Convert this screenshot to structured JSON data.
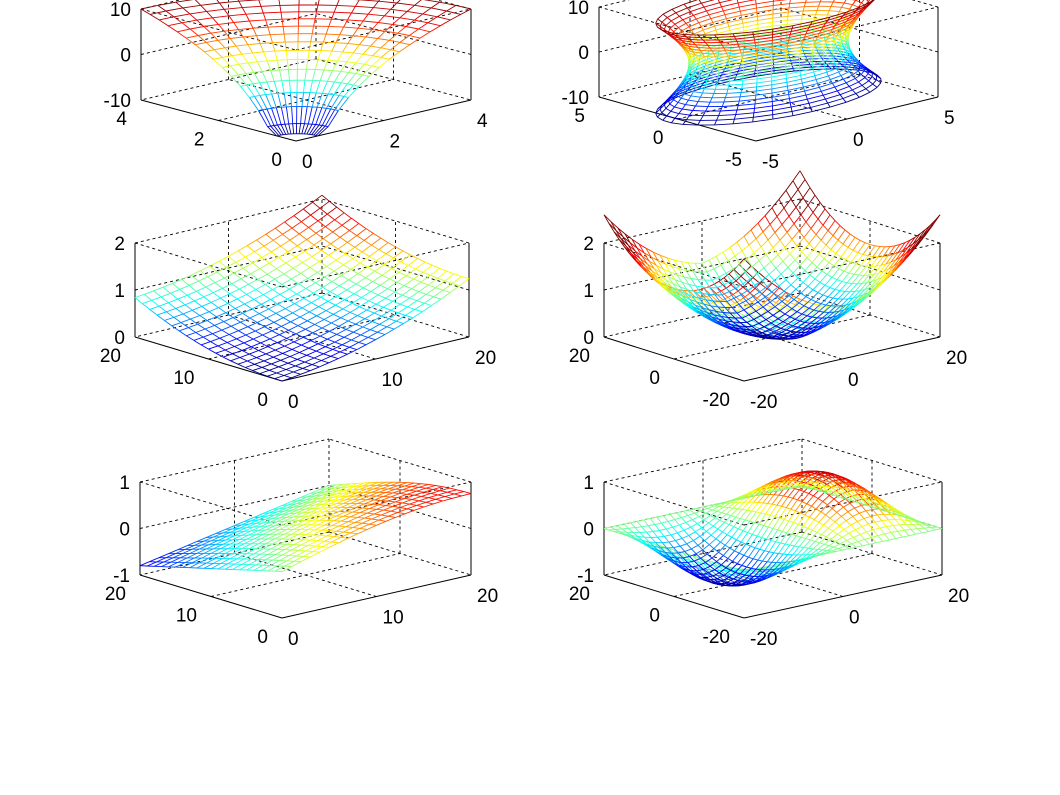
{
  "figure": {
    "layout": "3x2 subplot grid of 3D mesh surfaces",
    "colormap": "jet",
    "background": "#ffffff"
  },
  "chart_data": [
    {
      "id": "p1",
      "type": "surface",
      "style": "mesh",
      "grid": true,
      "colormap": "jet",
      "surface": "funnel",
      "xlim": [
        0,
        4
      ],
      "ylim": [
        0,
        4
      ],
      "zlim": [
        -10,
        10
      ],
      "xticks": [
        "0",
        "2",
        "4"
      ],
      "yticks": [
        "0",
        "2",
        "4"
      ],
      "zticks": [
        "-10",
        "0",
        "10"
      ]
    },
    {
      "id": "p2",
      "type": "surface",
      "style": "mesh",
      "grid": true,
      "colormap": "jet",
      "surface": "hyperboloid",
      "xlim": [
        -5,
        5
      ],
      "ylim": [
        -5,
        5
      ],
      "zlim": [
        -10,
        10
      ],
      "xticks": [
        "-5",
        "0",
        "5"
      ],
      "yticks": [
        "-5",
        "0",
        "5"
      ],
      "zticks": [
        "-10",
        "0",
        "10"
      ]
    },
    {
      "id": "p3",
      "type": "surface",
      "style": "mesh",
      "grid": true,
      "colormap": "jet",
      "surface": "bowl-corner",
      "xlim": [
        0,
        20
      ],
      "ylim": [
        0,
        20
      ],
      "zlim": [
        0,
        2
      ],
      "xticks": [
        "0",
        "10",
        "20"
      ],
      "yticks": [
        "0",
        "10",
        "20"
      ],
      "zticks": [
        "0",
        "1",
        "2"
      ]
    },
    {
      "id": "p4",
      "type": "surface",
      "style": "mesh",
      "grid": true,
      "colormap": "jet",
      "surface": "bowl-centered",
      "xlim": [
        -20,
        20
      ],
      "ylim": [
        -20,
        20
      ],
      "zlim": [
        0,
        2
      ],
      "xticks": [
        "-20",
        "0",
        "20"
      ],
      "yticks": [
        "-20",
        "0",
        "20"
      ],
      "zticks": [
        "0",
        "1",
        "2"
      ]
    },
    {
      "id": "p5",
      "type": "surface",
      "style": "mesh",
      "grid": true,
      "colormap": "jet",
      "surface": "saddle-corner",
      "xlim": [
        0,
        20
      ],
      "ylim": [
        0,
        20
      ],
      "zlim": [
        -1,
        1
      ],
      "xticks": [
        "0",
        "10",
        "20"
      ],
      "yticks": [
        "0",
        "10",
        "20"
      ],
      "zticks": [
        "-1",
        "0",
        "1"
      ]
    },
    {
      "id": "p6",
      "type": "surface",
      "style": "mesh",
      "grid": true,
      "colormap": "jet",
      "surface": "saddle-centered",
      "xlim": [
        -20,
        20
      ],
      "ylim": [
        -20,
        20
      ],
      "zlim": [
        -1,
        1
      ],
      "xticks": [
        "-20",
        "0",
        "20"
      ],
      "yticks": [
        "-20",
        "0",
        "20"
      ],
      "zticks": [
        "-1",
        "0",
        "1"
      ]
    }
  ]
}
